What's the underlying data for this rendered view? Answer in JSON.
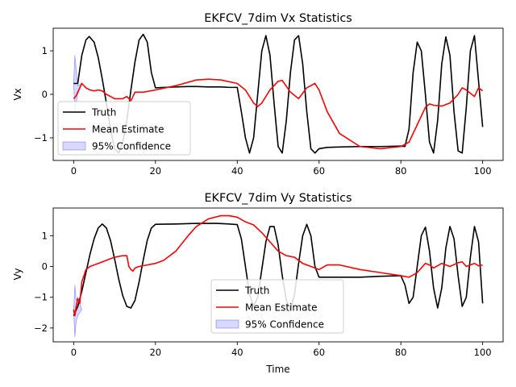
{
  "chart_data": [
    {
      "type": "line",
      "title": "EKFCV_7dim Vx Statistics",
      "xlabel": "",
      "ylabel": "Vx",
      "xlim": [
        -5,
        105
      ],
      "ylim": [
        -1.52,
        1.52
      ],
      "xticks": [
        0,
        20,
        40,
        60,
        80,
        100
      ],
      "yticks": [
        -1,
        0,
        1
      ],
      "grid": false,
      "legend": {
        "position": "lower-left",
        "entries": [
          "Truth",
          "Mean Estimate",
          "95% Confidence"
        ]
      },
      "series": [
        {
          "name": "Truth",
          "color": "#000000",
          "x": [
            0,
            1,
            2,
            3,
            3.8,
            5,
            6,
            7,
            8,
            9,
            10,
            11,
            12,
            13,
            14,
            15,
            16,
            17,
            18,
            19,
            20,
            22,
            25,
            28,
            30,
            33,
            36,
            38,
            40,
            41,
            42,
            43,
            44,
            45,
            46,
            47,
            48,
            49,
            50,
            51,
            52,
            53,
            54,
            55,
            56,
            57,
            58,
            59,
            60,
            62,
            65,
            70,
            75,
            80,
            81,
            82,
            83,
            84,
            85,
            86,
            87,
            88,
            89,
            90,
            91,
            92,
            93,
            94,
            95,
            96,
            97,
            98,
            99,
            100
          ],
          "y": [
            0.25,
            0.25,
            0.9,
            1.25,
            1.33,
            1.2,
            0.85,
            0.35,
            -0.2,
            -0.8,
            -1.25,
            -1.35,
            -1.1,
            -0.6,
            0.1,
            0.75,
            1.25,
            1.38,
            1.2,
            0.5,
            0.15,
            0.16,
            0.17,
            0.18,
            0.18,
            0.17,
            0.17,
            0.16,
            0.16,
            -0.4,
            -1.0,
            -1.35,
            -1.0,
            0.0,
            1.0,
            1.35,
            0.9,
            -0.2,
            -1.2,
            -1.35,
            -0.6,
            0.5,
            1.25,
            1.35,
            0.7,
            -0.4,
            -1.25,
            -1.35,
            -1.25,
            -1.22,
            -1.21,
            -1.2,
            -1.2,
            -1.19,
            -1.2,
            -0.8,
            0.5,
            1.2,
            1.0,
            0.0,
            -1.1,
            -1.35,
            -0.6,
            0.7,
            1.32,
            0.9,
            -0.4,
            -1.3,
            -1.35,
            -0.3,
            1.0,
            1.35,
            0.3,
            -0.75
          ]
        },
        {
          "name": "Mean Estimate",
          "color": "#ff0000",
          "x": [
            0,
            0.5,
            1,
            2,
            3,
            4,
            5,
            6,
            7,
            8,
            9,
            10,
            11,
            12,
            13,
            14,
            15,
            17,
            20,
            25,
            30,
            33,
            36,
            40,
            42,
            44,
            45,
            46,
            48,
            50,
            51,
            53,
            55,
            57,
            59,
            60,
            62,
            65,
            70,
            75,
            80,
            82,
            84,
            86,
            87,
            88,
            90,
            92,
            94,
            95,
            96,
            98,
            99,
            100
          ],
          "y": [
            -0.1,
            -0.05,
            0.05,
            0.25,
            0.15,
            0.1,
            0.08,
            0.1,
            0.08,
            0.0,
            -0.05,
            -0.1,
            -0.1,
            -0.1,
            -0.05,
            -0.15,
            0.05,
            0.05,
            0.1,
            0.2,
            0.33,
            0.35,
            0.33,
            0.25,
            0.1,
            -0.2,
            -0.28,
            -0.2,
            0.1,
            0.3,
            0.32,
            0.05,
            -0.1,
            0.15,
            0.25,
            0.1,
            -0.4,
            -0.9,
            -1.2,
            -1.25,
            -1.2,
            -1.1,
            -0.7,
            -0.3,
            -0.22,
            -0.25,
            -0.27,
            -0.2,
            0.0,
            0.15,
            0.1,
            -0.05,
            0.15,
            0.08
          ]
        },
        {
          "name": "95% Confidence",
          "color": "#0000ff",
          "x": [
            0,
            0.3,
            0.6,
            1,
            2
          ],
          "upper": [
            0.25,
            0.9,
            0.6,
            0.2,
            0.25
          ],
          "lower": [
            0.25,
            -0.4,
            -0.2,
            0.0,
            0.25
          ]
        }
      ]
    },
    {
      "type": "line",
      "title": "EKFCV_7dim Vy Statistics",
      "xlabel": "Time",
      "ylabel": "Vy",
      "xlim": [
        -5,
        105
      ],
      "ylim": [
        -2.45,
        1.9
      ],
      "xticks": [
        0,
        20,
        40,
        60,
        80,
        100
      ],
      "yticks": [
        -2,
        -1,
        0,
        1
      ],
      "grid": false,
      "legend": {
        "position": "lower-center",
        "entries": [
          "Truth",
          "Mean Estimate",
          "95% Confidence"
        ]
      },
      "series": [
        {
          "name": "Truth",
          "color": "#000000",
          "x": [
            0,
            1,
            2,
            3,
            4,
            5,
            6,
            7,
            8,
            9,
            10,
            11,
            12,
            13,
            14,
            15,
            16,
            17,
            18,
            19,
            20,
            25,
            30,
            35,
            38,
            40,
            41,
            42,
            43,
            44,
            45,
            46,
            47,
            48,
            49,
            50,
            51,
            52,
            53,
            54,
            55,
            56,
            57,
            58,
            59,
            60,
            65,
            70,
            75,
            80,
            81,
            82,
            83,
            84,
            85,
            86,
            87,
            88,
            89,
            90,
            91,
            92,
            93,
            94,
            95,
            96,
            97,
            98,
            99,
            100
          ],
          "y": [
            -1.6,
            -1.3,
            -0.8,
            -0.2,
            0.4,
            0.9,
            1.25,
            1.38,
            1.25,
            0.85,
            0.25,
            -0.4,
            -0.95,
            -1.3,
            -1.35,
            -1.1,
            -0.5,
            0.2,
            0.85,
            1.25,
            1.37,
            1.38,
            1.4,
            1.4,
            1.38,
            1.36,
            0.9,
            0.0,
            -0.9,
            -1.3,
            -1.0,
            -0.1,
            0.8,
            1.3,
            1.3,
            0.7,
            -0.3,
            -1.1,
            -1.4,
            -0.9,
            0.1,
            1.0,
            1.37,
            1.0,
            0.0,
            -0.35,
            -0.35,
            -0.35,
            -0.32,
            -0.3,
            -0.6,
            -1.2,
            -1.0,
            0.0,
            1.0,
            1.28,
            0.5,
            -0.7,
            -1.35,
            -0.7,
            0.6,
            1.3,
            0.9,
            -0.3,
            -1.3,
            -1.0,
            0.3,
            1.3,
            0.8,
            -1.2
          ]
        },
        {
          "name": "Mean Estimate",
          "color": "#ff0000",
          "x": [
            0,
            0.3,
            0.6,
            1,
            1.5,
            2,
            3,
            4,
            6,
            8,
            10,
            12,
            13,
            13.5,
            14,
            14.5,
            15,
            16,
            18,
            20,
            22,
            25,
            28,
            30,
            33,
            36,
            38,
            40,
            42,
            44,
            46,
            48,
            50,
            52,
            54,
            56,
            58,
            60,
            62,
            65,
            70,
            75,
            80,
            82,
            84,
            86,
            87,
            88,
            90,
            92,
            94,
            95,
            96,
            98,
            99,
            100
          ],
          "y": [
            -1.4,
            -1.6,
            -1.3,
            -1.05,
            -1.2,
            -0.5,
            -0.1,
            0.0,
            0.1,
            0.2,
            0.3,
            0.35,
            0.35,
            0.0,
            -0.1,
            -0.15,
            -0.05,
            0.0,
            0.05,
            0.1,
            0.2,
            0.5,
            1.0,
            1.3,
            1.55,
            1.65,
            1.65,
            1.6,
            1.45,
            1.35,
            1.1,
            0.8,
            0.5,
            0.35,
            0.3,
            0.1,
            0.0,
            -0.1,
            0.05,
            0.05,
            -0.1,
            -0.2,
            -0.3,
            -0.35,
            -0.2,
            0.1,
            0.05,
            -0.05,
            0.1,
            0.0,
            0.12,
            0.15,
            0.0,
            0.1,
            0.02,
            0.05
          ]
        },
        {
          "name": "95% Confidence",
          "color": "#0000ff",
          "x": [
            0,
            0.3,
            0.6,
            1,
            2
          ],
          "upper": [
            -1.4,
            -0.6,
            -1.1,
            -1.0,
            -1.4
          ],
          "lower": [
            -1.4,
            -2.3,
            -1.8,
            -1.6,
            -1.4
          ]
        }
      ]
    }
  ]
}
